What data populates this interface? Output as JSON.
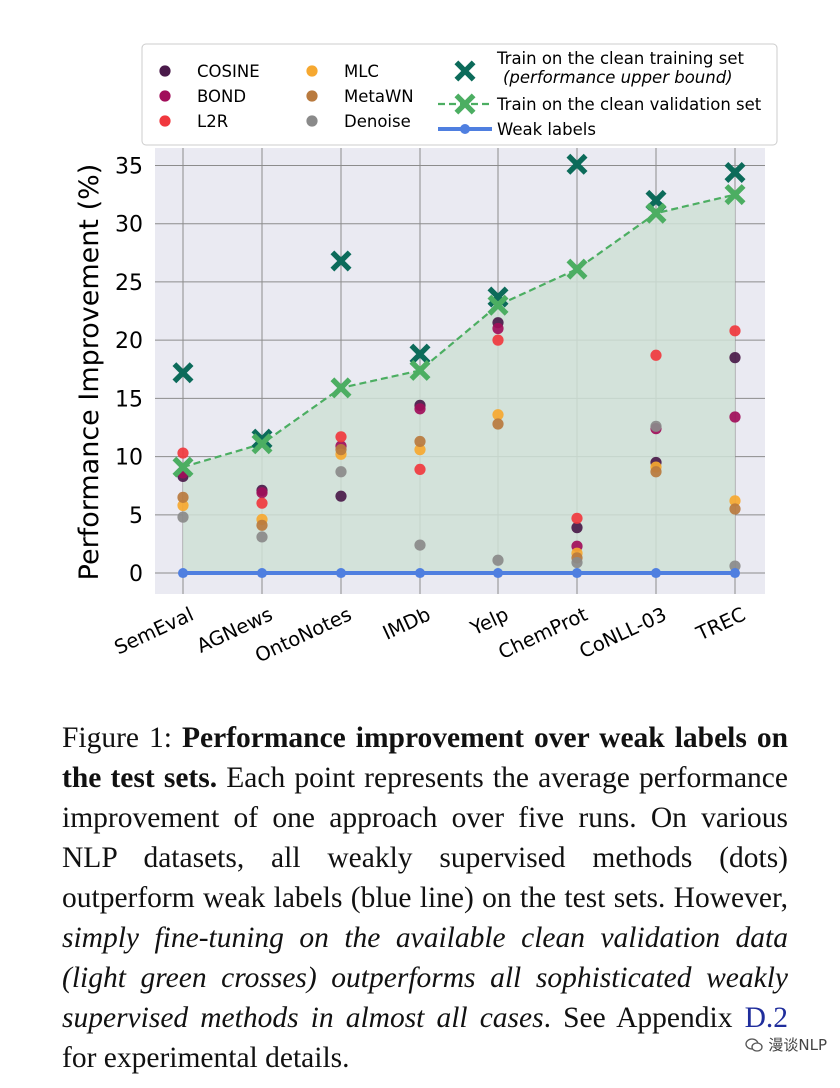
{
  "figure": {
    "caption": {
      "label": "Figure 1:",
      "bold": "Performance improvement over weak labels on the test sets.",
      "text1": "Each point represents the average performance improvement of one approach over five runs. On various NLP datasets, all weakly supervised methods (dots) outperform weak labels (blue line) on the test sets. However,",
      "italic": "simply fine-tuning on the available clean validation data (light green crosses) outperforms all sophisticated weakly supervised methods in almost all cases",
      "text2": ". See Appendix",
      "link": "D.2",
      "text3": "for experimental details."
    },
    "watermark": "漫谈NLP"
  },
  "chart_data": {
    "type": "scatter",
    "ylabel": "Performance Improvement (%)",
    "xlabel": "",
    "ylim": [
      -1.8,
      36.5
    ],
    "yticks": [
      0,
      5,
      10,
      15,
      20,
      25,
      30,
      35
    ],
    "categories": [
      "SemEval",
      "AGNews",
      "OntoNotes",
      "IMDb",
      "Yelp",
      "ChemProt",
      "CoNLL-03",
      "TREC"
    ],
    "grid": true,
    "legend_position": "top",
    "colors": {
      "COSINE": "#4a1a4a",
      "BOND": "#a10e5a",
      "L2R": "#f0383e",
      "MLC": "#f6a830",
      "MetaWN": "#b97a3e",
      "Denoise": "#8a8a8a",
      "clean_train": "#0c6b5a",
      "clean_val": "#4cae62",
      "weak": "#4f7fe0",
      "plot_bg": "#eaeaf2",
      "fill": "#cfe0d6"
    },
    "series": [
      {
        "name": "COSINE",
        "values": [
          8.3,
          7.1,
          6.6,
          14.4,
          21.5,
          3.9,
          9.5,
          18.5
        ]
      },
      {
        "name": "BOND",
        "values": [
          8.6,
          6.9,
          10.9,
          14.1,
          21.0,
          2.3,
          12.4,
          13.4
        ]
      },
      {
        "name": "L2R",
        "values": [
          10.3,
          6.0,
          11.7,
          8.9,
          20.0,
          4.7,
          18.7,
          20.8
        ]
      },
      {
        "name": "MLC",
        "values": [
          5.8,
          4.6,
          10.2,
          10.6,
          13.6,
          1.7,
          9.1,
          6.2
        ]
      },
      {
        "name": "MetaWN",
        "values": [
          6.5,
          4.1,
          10.6,
          11.3,
          12.8,
          1.3,
          8.7,
          5.5
        ]
      },
      {
        "name": "Denoise",
        "values": [
          4.8,
          3.1,
          8.7,
          2.4,
          1.1,
          0.9,
          12.6,
          0.6
        ]
      }
    ],
    "clean_train": {
      "name": "Train on the clean training set",
      "note": "(performance upper bound)",
      "values": [
        17.2,
        11.5,
        26.8,
        18.8,
        23.7,
        35.1,
        32.0,
        34.4
      ]
    },
    "clean_val": {
      "name": "Train on the clean validation set",
      "values": [
        9.1,
        11.1,
        15.9,
        17.4,
        23.0,
        26.1,
        30.9,
        32.5
      ]
    },
    "weak_labels": {
      "name": "Weak labels",
      "values": [
        0,
        0,
        0,
        0,
        0,
        0,
        0,
        0
      ]
    }
  }
}
